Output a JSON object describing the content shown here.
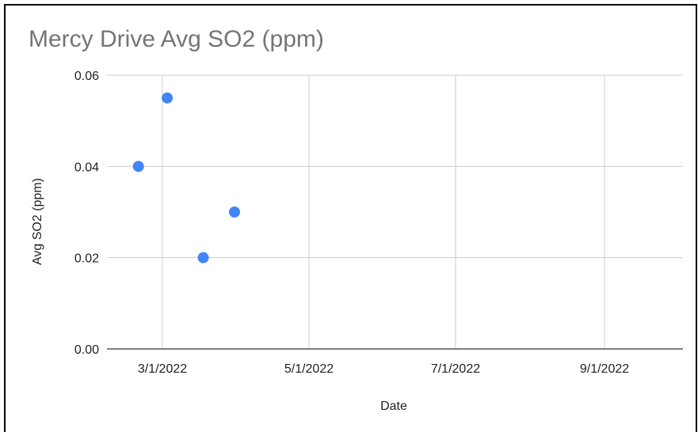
{
  "chart_data": {
    "type": "scatter",
    "title": "Mercy Drive Avg SO2 (ppm)",
    "xlabel": "Date",
    "ylabel": "Avg SO2 (ppm)",
    "ylim": [
      0,
      0.06
    ],
    "y_ticks": [
      "0.00",
      "0.02",
      "0.04",
      "0.06"
    ],
    "x_ticks": [
      "3/1/2022",
      "5/1/2022",
      "7/1/2022",
      "9/1/2022"
    ],
    "grid": true,
    "legend": "none",
    "point_color": "#4285f4",
    "series": [
      {
        "x": [
          "2/19/2022",
          "3/3/2022",
          "3/18/2022",
          "3/31/2022"
        ],
        "y": [
          0.04,
          0.055,
          0.02,
          0.03
        ]
      }
    ]
  }
}
